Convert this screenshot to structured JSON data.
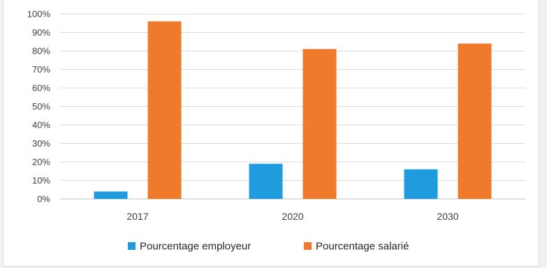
{
  "chart_data": {
    "type": "bar",
    "categories": [
      "2017",
      "2020",
      "2030"
    ],
    "series": [
      {
        "name": "Pourcentage employeur",
        "color": "#1f9bde",
        "values": [
          4,
          19,
          16
        ]
      },
      {
        "name": "Pourcentage salarié",
        "color": "#f07a2b",
        "values": [
          96,
          81,
          84
        ]
      }
    ],
    "ylim": [
      0,
      100
    ],
    "yticks": [
      "0%",
      "10%",
      "20%",
      "30%",
      "40%",
      "50%",
      "60%",
      "70%",
      "80%",
      "90%",
      "100%"
    ],
    "grid": true,
    "legend": "bottom-center"
  }
}
